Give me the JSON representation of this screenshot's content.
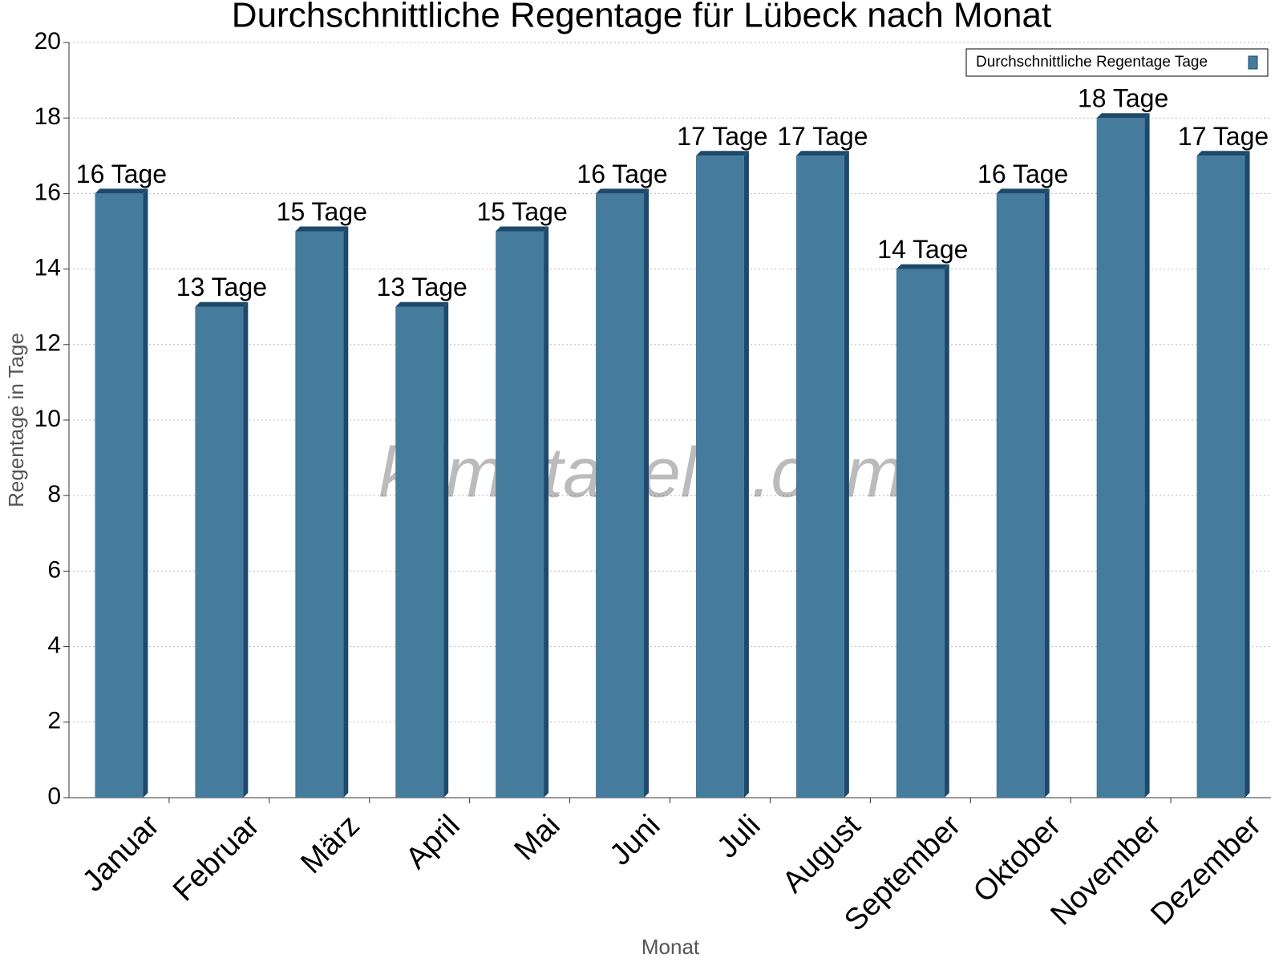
{
  "chart_data": {
    "type": "bar",
    "title": "Durchschnittliche Regentage für Lübeck nach Monat",
    "xlabel": "Monat",
    "ylabel": "Regentage in Tage",
    "watermark": "klimatabelle.com",
    "categories": [
      "Januar",
      "Februar",
      "März",
      "April",
      "Mai",
      "Juni",
      "Juli",
      "August",
      "September",
      "Oktober",
      "November",
      "Dezember"
    ],
    "series": [
      {
        "name": "Durchschnittliche Regentage Tage",
        "color": "#457b9d",
        "values": [
          16,
          13,
          15,
          13,
          15,
          16,
          17,
          17,
          14,
          16,
          18,
          17
        ],
        "value_labels": [
          "16 Tage",
          "13 Tage",
          "15 Tage",
          "13 Tage",
          "15 Tage",
          "16 Tage",
          "17 Tage",
          "17 Tage",
          "14 Tage",
          "16 Tage",
          "18 Tage",
          "17 Tage"
        ]
      }
    ],
    "ylim": [
      0,
      20
    ],
    "yticks": [
      0,
      2,
      4,
      6,
      8,
      10,
      12,
      14,
      16,
      18,
      20
    ],
    "grid": true,
    "legend": "upper right"
  }
}
